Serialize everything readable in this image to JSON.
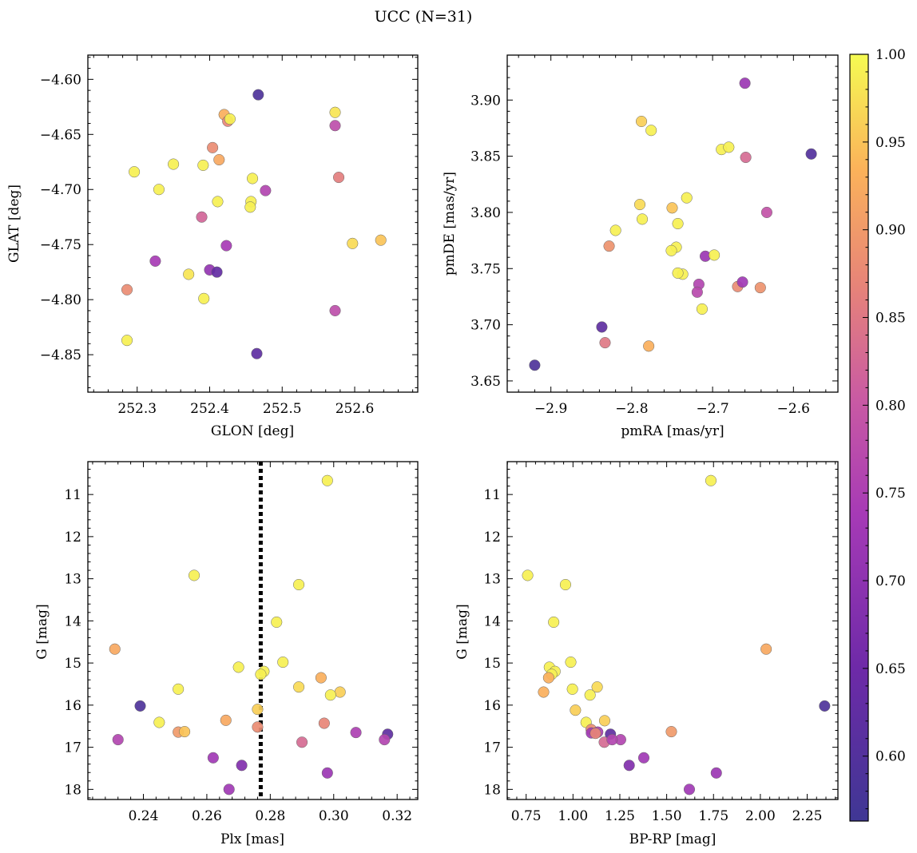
{
  "title": "UCC (N=31)",
  "colorbar": {
    "range": [
      0.563,
      1.0
    ],
    "ticks": [
      0.6,
      0.65,
      0.7,
      0.75,
      0.8,
      0.85,
      0.9,
      0.95,
      1.0
    ],
    "tick_labels": [
      "0.60",
      "0.65",
      "0.70",
      "0.75",
      "0.80",
      "0.85",
      "0.90",
      "0.95",
      "1.00"
    ],
    "colormap": "plasma"
  },
  "chart_data": [
    {
      "type": "scatter",
      "id": "glon-glat",
      "xlabel": "GLON [deg]",
      "ylabel": "GLAT [deg]",
      "xlim": [
        252.232,
        252.687
      ],
      "ylim": [
        -4.884,
        -4.578
      ],
      "xticks": [
        252.3,
        252.4,
        252.5,
        252.6
      ],
      "xtick_labels": [
        "252.3",
        "252.4",
        "252.5",
        "252.6"
      ],
      "yticks": [
        -4.6,
        -4.65,
        -4.7,
        -4.75,
        -4.8,
        -4.85
      ],
      "ytick_labels": [
        "−4.60",
        "−4.65",
        "−4.70",
        "−4.75",
        "−4.80",
        "−4.85"
      ],
      "x": [
        252.467,
        252.573,
        252.42,
        252.425,
        252.428,
        252.573,
        252.404,
        252.296,
        252.35,
        252.391,
        252.413,
        252.33,
        252.459,
        252.578,
        252.457,
        252.411,
        252.456,
        252.477,
        252.389,
        252.597,
        252.636,
        252.423,
        252.325,
        252.4,
        252.41,
        252.371,
        252.286,
        252.392,
        252.573,
        252.465,
        252.286
      ],
      "y": [
        -4.614,
        -4.63,
        -4.632,
        -4.638,
        -4.636,
        -4.642,
        -4.662,
        -4.684,
        -4.677,
        -4.678,
        -4.673,
        -4.7,
        -4.69,
        -4.689,
        -4.711,
        -4.711,
        -4.716,
        -4.701,
        -4.725,
        -4.749,
        -4.746,
        -4.751,
        -4.765,
        -4.773,
        -4.775,
        -4.777,
        -4.791,
        -4.799,
        -4.81,
        -4.849,
        -4.837
      ],
      "prob": [
        0.59,
        0.98,
        0.93,
        0.87,
        0.99,
        0.78,
        0.88,
        0.99,
        0.99,
        0.99,
        0.92,
        0.99,
        0.99,
        0.86,
        0.99,
        0.99,
        0.99,
        0.76,
        0.82,
        0.97,
        0.95,
        0.74,
        0.74,
        0.71,
        0.63,
        0.98,
        0.88,
        0.99,
        0.78,
        0.62,
        0.99
      ]
    },
    {
      "type": "scatter",
      "id": "pm",
      "xlabel": "pmRA [mas/yr]",
      "ylabel": "pmDE [mas/yr]",
      "xlim": [
        -2.954,
        -2.545
      ],
      "ylim": [
        3.64,
        3.94
      ],
      "xticks": [
        -2.9,
        -2.8,
        -2.7,
        -2.6
      ],
      "xtick_labels": [
        "−2.9",
        "−2.8",
        "−2.7",
        "−2.6"
      ],
      "yticks": [
        3.65,
        3.7,
        3.75,
        3.8,
        3.85,
        3.9
      ],
      "ytick_labels": [
        "3.65",
        "3.70",
        "3.75",
        "3.80",
        "3.85",
        "3.90"
      ],
      "x": [
        -2.66,
        -2.788,
        -2.776,
        -2.578,
        -2.689,
        -2.68,
        -2.659,
        -2.633,
        -2.732,
        -2.79,
        -2.75,
        -2.787,
        -2.743,
        -2.82,
        -2.828,
        -2.745,
        -2.751,
        -2.737,
        -2.743,
        -2.709,
        -2.698,
        -2.717,
        -2.669,
        -2.663,
        -2.641,
        -2.719,
        -2.713,
        -2.837,
        -2.833,
        -2.779,
        -2.92
      ],
      "y": [
        3.915,
        3.881,
        3.873,
        3.852,
        3.856,
        3.858,
        3.849,
        3.8,
        3.813,
        3.807,
        3.804,
        3.794,
        3.79,
        3.784,
        3.77,
        3.769,
        3.766,
        3.745,
        3.746,
        3.761,
        3.762,
        3.736,
        3.734,
        3.738,
        3.733,
        3.729,
        3.714,
        3.698,
        3.684,
        3.681,
        3.664
      ],
      "prob": [
        0.72,
        0.96,
        0.99,
        0.6,
        0.99,
        0.99,
        0.83,
        0.79,
        0.99,
        0.97,
        0.95,
        0.99,
        0.99,
        0.99,
        0.89,
        0.99,
        0.99,
        0.99,
        0.99,
        0.72,
        0.99,
        0.76,
        0.88,
        0.73,
        0.89,
        0.77,
        0.99,
        0.62,
        0.85,
        0.93,
        0.59
      ]
    },
    {
      "type": "scatter",
      "id": "plx-g",
      "xlabel": "Plx [mas]",
      "ylabel": "G [mag]",
      "xlim": [
        0.2225,
        0.3265
      ],
      "ylim": [
        18.24,
        10.22
      ],
      "y_inverted": true,
      "xticks": [
        0.24,
        0.26,
        0.28,
        0.3,
        0.32
      ],
      "xtick_labels": [
        "0.24",
        "0.26",
        "0.28",
        "0.30",
        "0.32"
      ],
      "yticks": [
        11,
        12,
        13,
        14,
        15,
        16,
        17,
        18
      ],
      "ytick_labels": [
        "11",
        "12",
        "13",
        "14",
        "15",
        "16",
        "17",
        "18"
      ],
      "vline": 0.277,
      "x": [
        0.298,
        0.256,
        0.289,
        0.282,
        0.231,
        0.27,
        0.284,
        0.278,
        0.277,
        0.296,
        0.289,
        0.251,
        0.302,
        0.299,
        0.239,
        0.276,
        0.245,
        0.266,
        0.297,
        0.251,
        0.253,
        0.276,
        0.307,
        0.317,
        0.232,
        0.29,
        0.316,
        0.262,
        0.271,
        0.298,
        0.267
      ],
      "y": [
        10.67,
        12.92,
        13.14,
        14.03,
        14.67,
        15.1,
        14.98,
        15.2,
        15.27,
        15.35,
        15.57,
        15.62,
        15.69,
        15.76,
        16.02,
        16.1,
        16.41,
        16.36,
        16.43,
        16.64,
        16.63,
        16.52,
        16.65,
        16.69,
        16.82,
        16.88,
        16.82,
        17.25,
        17.43,
        17.61,
        18.0
      ],
      "prob": [
        0.99,
        0.99,
        0.99,
        0.99,
        0.92,
        0.99,
        0.99,
        0.99,
        0.99,
        0.93,
        0.97,
        0.99,
        0.96,
        0.99,
        0.59,
        0.96,
        0.99,
        0.92,
        0.87,
        0.9,
        0.95,
        0.88,
        0.75,
        0.62,
        0.76,
        0.83,
        0.76,
        0.73,
        0.68,
        0.72,
        0.73
      ]
    },
    {
      "type": "scatter",
      "id": "cmd",
      "xlabel": "BP-RP [mag]",
      "ylabel": "G [mag]",
      "xlim": [
        0.649,
        2.414
      ],
      "ylim": [
        18.24,
        10.22
      ],
      "y_inverted": true,
      "xticks": [
        0.75,
        1.0,
        1.25,
        1.5,
        1.75,
        2.0,
        2.25
      ],
      "xtick_labels": [
        "0.75",
        "1.00",
        "1.25",
        "1.50",
        "1.75",
        "2.00",
        "2.25"
      ],
      "yticks": [
        11,
        12,
        13,
        14,
        15,
        16,
        17,
        18
      ],
      "ytick_labels": [
        "11",
        "12",
        "13",
        "14",
        "15",
        "16",
        "17",
        "18"
      ],
      "x": [
        1.736,
        0.758,
        0.96,
        0.897,
        2.031,
        0.874,
        0.988,
        0.904,
        0.886,
        0.87,
        0.997,
        0.843,
        1.129,
        1.091,
        2.343,
        1.013,
        1.07,
        1.169,
        1.525,
        1.097,
        1.132,
        1.2,
        1.254,
        1.167,
        1.209,
        1.098,
        1.378,
        1.3,
        1.765,
        1.621,
        1.12
      ],
      "y": [
        10.67,
        12.92,
        13.14,
        14.03,
        14.67,
        15.1,
        14.98,
        15.2,
        15.27,
        15.35,
        15.62,
        15.69,
        15.57,
        15.76,
        16.02,
        16.12,
        16.41,
        16.37,
        16.63,
        16.58,
        16.64,
        16.69,
        16.82,
        16.88,
        16.82,
        16.66,
        17.25,
        17.43,
        17.61,
        18.0,
        16.67
      ],
      "prob": [
        0.99,
        0.99,
        0.99,
        0.99,
        0.92,
        0.99,
        0.99,
        0.99,
        0.99,
        0.93,
        0.99,
        0.93,
        0.97,
        0.99,
        0.59,
        0.96,
        0.99,
        0.96,
        0.9,
        0.88,
        0.75,
        0.62,
        0.76,
        0.83,
        0.76,
        0.73,
        0.73,
        0.68,
        0.72,
        0.73,
        0.87
      ]
    }
  ]
}
